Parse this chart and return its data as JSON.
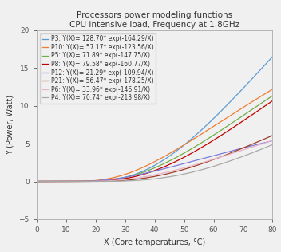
{
  "title_line1": "Processors power modeling functions",
  "title_line2": "CPU intensive load, Frequency at 1.8GHz",
  "xlabel": "X (Core temperatures, °C)",
  "ylabel": "Y (Power, Watt)",
  "xlim": [
    0,
    80
  ],
  "ylim": [
    -5,
    20
  ],
  "xticks": [
    0,
    10,
    20,
    30,
    40,
    50,
    60,
    70,
    80
  ],
  "yticks": [
    -5,
    0,
    5,
    10,
    15,
    20
  ],
  "series": [
    {
      "name": "P3",
      "A": 128.7,
      "B": -164.29,
      "color": "#5b9bd5"
    },
    {
      "name": "P10",
      "A": 57.17,
      "B": -123.56,
      "color": "#ed7d31"
    },
    {
      "name": "P5",
      "A": 71.89,
      "B": -147.75,
      "color": "#70ad47"
    },
    {
      "name": "P8",
      "A": 79.58,
      "B": -160.77,
      "color": "#c00000"
    },
    {
      "name": "P12",
      "A": 21.29,
      "B": -109.94,
      "color": "#7b7bde"
    },
    {
      "name": "P21",
      "A": 56.47,
      "B": -178.25,
      "color": "#9e3d26"
    },
    {
      "name": "P6",
      "A": 33.96,
      "B": -146.91,
      "color": "#e8b4c8"
    },
    {
      "name": "P4",
      "A": 70.74,
      "B": -213.98,
      "color": "#a9a9a9"
    }
  ],
  "background_color": "#f0f0f0",
  "legend_fontsize": 5.5,
  "title_fontsize": 7.5,
  "axis_label_fontsize": 7,
  "tick_fontsize": 6.5
}
